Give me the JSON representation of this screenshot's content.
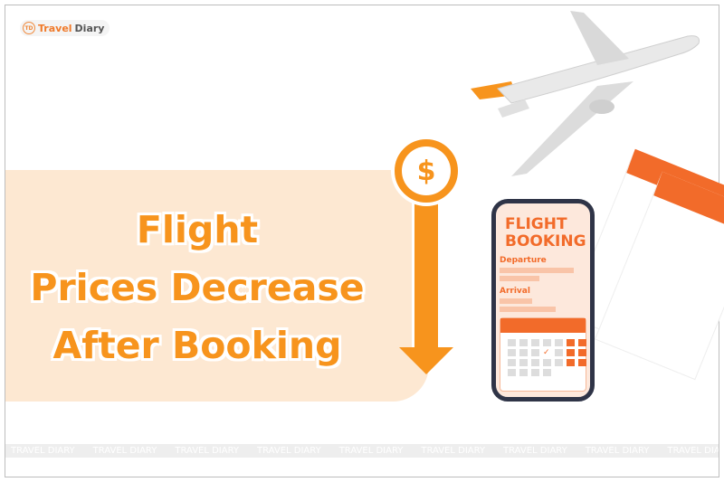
{
  "logo": {
    "mark": "TD",
    "word1": "Travel",
    "word2": "Diary"
  },
  "headline": {
    "line1": "Flight",
    "line2": "Prices Decrease",
    "line3": "After Booking"
  },
  "coin": {
    "symbol": "$"
  },
  "phone": {
    "title_line1": "FLIGHT",
    "title_line2": "BOOKING",
    "departure": "Departure",
    "arrival": "Arrival"
  },
  "watermark": {
    "text": "TRAVEL DIARY"
  },
  "colors": {
    "accent": "#f7941d",
    "band": "#fde8d2",
    "phone_accent": "#f26b2a"
  }
}
